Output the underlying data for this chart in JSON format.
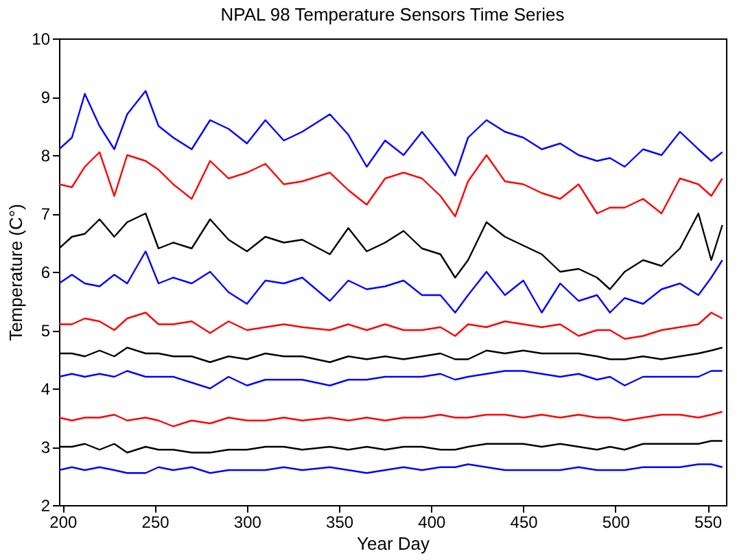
{
  "chart_data": {
    "type": "line",
    "title": "NPAL 98 Temperature Sensors Time Series",
    "xlabel": "Year Day",
    "ylabel": "Temperature (C°)",
    "x": [
      198,
      205,
      212,
      220,
      228,
      235,
      245,
      252,
      260,
      270,
      280,
      290,
      300,
      310,
      320,
      330,
      345,
      355,
      365,
      375,
      385,
      395,
      405,
      413,
      420,
      430,
      440,
      450,
      460,
      470,
      480,
      490,
      497,
      505,
      515,
      525,
      535,
      545,
      552,
      558
    ],
    "xlim": [
      198,
      560
    ],
    "xticks": [
      200,
      250,
      300,
      350,
      400,
      450,
      500,
      550
    ],
    "ylim": [
      2,
      10
    ],
    "yticks": [
      2,
      3,
      4,
      5,
      6,
      7,
      8,
      9,
      10
    ],
    "grid": false,
    "marker": "none",
    "line_style": "solid",
    "series": [
      {
        "color": "#0000ff",
        "values": [
          8.1,
          8.3,
          9.05,
          8.5,
          8.1,
          8.7,
          9.1,
          8.5,
          8.3,
          8.1,
          8.6,
          8.45,
          8.2,
          8.6,
          8.25,
          8.4,
          8.7,
          8.35,
          7.8,
          8.25,
          8.0,
          8.4,
          8.0,
          7.65,
          8.3,
          8.6,
          8.4,
          8.3,
          8.1,
          8.2,
          8.0,
          7.9,
          7.95,
          7.8,
          8.1,
          8.0,
          8.4,
          8.1,
          7.9,
          8.05
        ]
      },
      {
        "color": "#ff0000",
        "values": [
          7.5,
          7.45,
          7.8,
          8.05,
          7.3,
          8.0,
          7.9,
          7.75,
          7.5,
          7.25,
          7.9,
          7.6,
          7.7,
          7.85,
          7.5,
          7.55,
          7.7,
          7.4,
          7.15,
          7.6,
          7.7,
          7.6,
          7.3,
          6.95,
          7.55,
          8.0,
          7.55,
          7.5,
          7.35,
          7.25,
          7.5,
          7.0,
          7.1,
          7.1,
          7.25,
          7.0,
          7.6,
          7.5,
          7.3,
          7.6
        ]
      },
      {
        "color": "#000000",
        "values": [
          6.4,
          6.6,
          6.65,
          6.9,
          6.6,
          6.85,
          7.0,
          6.4,
          6.5,
          6.4,
          6.9,
          6.55,
          6.35,
          6.6,
          6.5,
          6.55,
          6.3,
          6.75,
          6.35,
          6.5,
          6.7,
          6.4,
          6.3,
          5.9,
          6.2,
          6.85,
          6.6,
          6.45,
          6.3,
          6.0,
          6.05,
          5.9,
          5.7,
          6.0,
          6.2,
          6.1,
          6.4,
          7.0,
          6.2,
          6.8
        ]
      },
      {
        "color": "#0000ff",
        "values": [
          5.8,
          5.95,
          5.8,
          5.75,
          5.95,
          5.8,
          6.35,
          5.8,
          5.9,
          5.8,
          6.0,
          5.65,
          5.45,
          5.85,
          5.8,
          5.9,
          5.5,
          5.85,
          5.7,
          5.75,
          5.85,
          5.6,
          5.6,
          5.3,
          5.6,
          6.0,
          5.6,
          5.85,
          5.3,
          5.8,
          5.5,
          5.6,
          5.3,
          5.55,
          5.45,
          5.7,
          5.8,
          5.6,
          5.9,
          6.2
        ]
      },
      {
        "color": "#ff0000",
        "values": [
          5.1,
          5.1,
          5.2,
          5.15,
          5.0,
          5.2,
          5.3,
          5.1,
          5.1,
          5.15,
          4.95,
          5.15,
          5.0,
          5.05,
          5.1,
          5.05,
          5.0,
          5.1,
          5.0,
          5.1,
          5.0,
          5.0,
          5.05,
          4.9,
          5.1,
          5.05,
          5.15,
          5.1,
          5.05,
          5.1,
          4.9,
          5.0,
          5.0,
          4.85,
          4.9,
          5.0,
          5.05,
          5.1,
          5.3,
          5.2
        ]
      },
      {
        "color": "#000000",
        "values": [
          4.6,
          4.6,
          4.55,
          4.65,
          4.55,
          4.7,
          4.6,
          4.6,
          4.55,
          4.55,
          4.45,
          4.55,
          4.5,
          4.6,
          4.55,
          4.55,
          4.45,
          4.55,
          4.5,
          4.55,
          4.5,
          4.55,
          4.6,
          4.5,
          4.5,
          4.65,
          4.6,
          4.65,
          4.6,
          4.6,
          4.6,
          4.55,
          4.5,
          4.5,
          4.55,
          4.5,
          4.55,
          4.6,
          4.65,
          4.7
        ]
      },
      {
        "color": "#0000ff",
        "values": [
          4.2,
          4.25,
          4.2,
          4.25,
          4.2,
          4.3,
          4.2,
          4.2,
          4.2,
          4.1,
          4.0,
          4.2,
          4.05,
          4.15,
          4.15,
          4.15,
          4.05,
          4.15,
          4.15,
          4.2,
          4.2,
          4.2,
          4.25,
          4.15,
          4.2,
          4.25,
          4.3,
          4.3,
          4.25,
          4.2,
          4.25,
          4.15,
          4.2,
          4.05,
          4.2,
          4.2,
          4.2,
          4.2,
          4.3,
          4.3
        ]
      },
      {
        "color": "#ff0000",
        "values": [
          3.5,
          3.45,
          3.5,
          3.5,
          3.55,
          3.45,
          3.5,
          3.45,
          3.35,
          3.45,
          3.4,
          3.5,
          3.45,
          3.45,
          3.5,
          3.45,
          3.5,
          3.45,
          3.5,
          3.45,
          3.5,
          3.5,
          3.55,
          3.5,
          3.5,
          3.55,
          3.55,
          3.5,
          3.55,
          3.5,
          3.55,
          3.5,
          3.5,
          3.45,
          3.5,
          3.55,
          3.55,
          3.5,
          3.55,
          3.6
        ]
      },
      {
        "color": "#000000",
        "values": [
          3.0,
          3.0,
          3.05,
          2.95,
          3.05,
          2.9,
          3.0,
          2.95,
          2.95,
          2.9,
          2.9,
          2.95,
          2.95,
          3.0,
          3.0,
          2.95,
          3.0,
          2.95,
          3.0,
          2.95,
          3.0,
          3.0,
          2.95,
          2.95,
          3.0,
          3.05,
          3.05,
          3.05,
          3.0,
          3.05,
          3.0,
          2.95,
          3.0,
          2.95,
          3.05,
          3.05,
          3.05,
          3.05,
          3.1,
          3.1
        ]
      },
      {
        "color": "#0000ff",
        "values": [
          2.6,
          2.65,
          2.6,
          2.65,
          2.6,
          2.55,
          2.55,
          2.65,
          2.6,
          2.65,
          2.55,
          2.6,
          2.6,
          2.6,
          2.65,
          2.6,
          2.65,
          2.6,
          2.55,
          2.6,
          2.65,
          2.6,
          2.65,
          2.65,
          2.7,
          2.65,
          2.6,
          2.6,
          2.6,
          2.6,
          2.65,
          2.6,
          2.6,
          2.6,
          2.65,
          2.65,
          2.65,
          2.7,
          2.7,
          2.65
        ]
      }
    ]
  }
}
